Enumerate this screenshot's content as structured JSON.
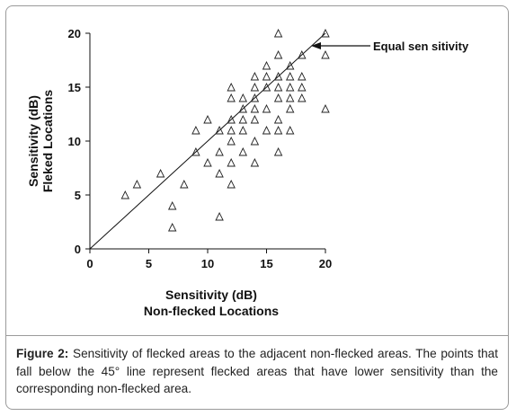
{
  "chart_data": {
    "type": "scatter",
    "xlabel": [
      "Sensitivity (dB)",
      "Non-flecked Locations"
    ],
    "ylabel": [
      "Sensitivity (dB)",
      "Fleked Locations"
    ],
    "xlim": [
      0,
      20
    ],
    "ylim": [
      0,
      20
    ],
    "x_ticks": [
      0,
      5,
      10,
      15,
      20
    ],
    "y_ticks": [
      0,
      5,
      10,
      15,
      20
    ],
    "grid": false,
    "marker": "open-triangle",
    "reference_line": {
      "from": [
        0,
        0
      ],
      "to": [
        20,
        20
      ],
      "label": "Equal sen sitivity"
    },
    "points": [
      [
        3,
        5
      ],
      [
        4,
        6
      ],
      [
        6,
        7
      ],
      [
        7,
        2
      ],
      [
        7,
        4
      ],
      [
        8,
        6
      ],
      [
        9,
        9
      ],
      [
        9,
        11
      ],
      [
        10,
        8
      ],
      [
        10,
        12
      ],
      [
        11,
        3
      ],
      [
        11,
        7
      ],
      [
        11,
        9
      ],
      [
        11,
        11
      ],
      [
        12,
        6
      ],
      [
        12,
        8
      ],
      [
        12,
        10
      ],
      [
        12,
        11
      ],
      [
        12,
        12
      ],
      [
        12,
        14
      ],
      [
        12,
        15
      ],
      [
        13,
        9
      ],
      [
        13,
        11
      ],
      [
        13,
        12
      ],
      [
        13,
        13
      ],
      [
        13,
        14
      ],
      [
        14,
        8
      ],
      [
        14,
        10
      ],
      [
        14,
        12
      ],
      [
        14,
        13
      ],
      [
        14,
        14
      ],
      [
        14,
        15
      ],
      [
        14,
        16
      ],
      [
        15,
        11
      ],
      [
        15,
        13
      ],
      [
        15,
        15
      ],
      [
        15,
        16
      ],
      [
        15,
        17
      ],
      [
        16,
        9
      ],
      [
        16,
        11
      ],
      [
        16,
        12
      ],
      [
        16,
        14
      ],
      [
        16,
        15
      ],
      [
        16,
        16
      ],
      [
        16,
        18
      ],
      [
        16,
        20
      ],
      [
        17,
        11
      ],
      [
        17,
        13
      ],
      [
        17,
        14
      ],
      [
        17,
        15
      ],
      [
        17,
        16
      ],
      [
        17,
        17
      ],
      [
        18,
        14
      ],
      [
        18,
        15
      ],
      [
        18,
        16
      ],
      [
        18,
        18
      ],
      [
        20,
        13
      ],
      [
        20,
        18
      ],
      [
        20,
        20
      ]
    ]
  },
  "caption": {
    "label": "Figure 2:",
    "text": " Sensitivity of flecked areas to the adjacent non-flecked areas. The points that fall below the 45° line represent flecked areas that have lower sensitivity than the corresponding non-flecked area."
  }
}
